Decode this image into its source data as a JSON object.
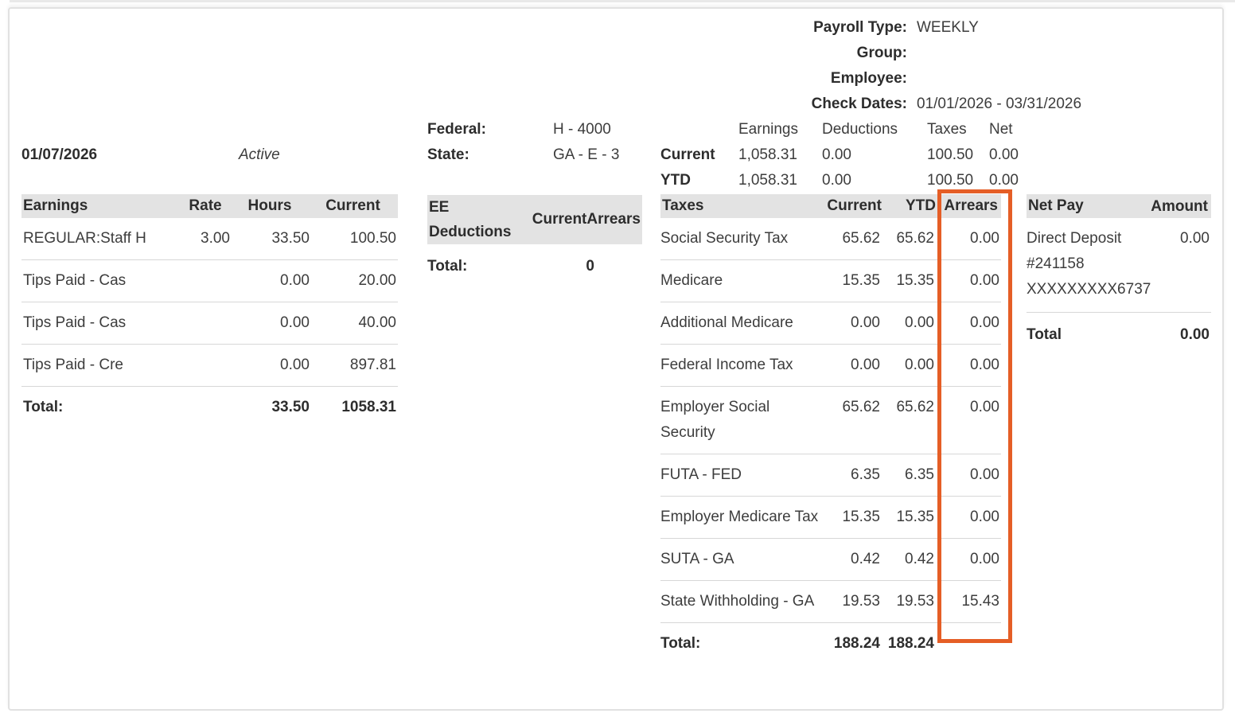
{
  "header": {
    "fields": [
      {
        "label": "Payroll Type:",
        "value": "WEEKLY"
      },
      {
        "label": "Group:",
        "value": ""
      },
      {
        "label": "Employee:",
        "value": ""
      },
      {
        "label": "Check Dates:",
        "value": "01/01/2026 - 03/31/2026"
      }
    ],
    "summary": {
      "columns": [
        "Earnings",
        "Deductions",
        "Taxes",
        "Net"
      ],
      "rows": [
        {
          "label": "Current",
          "earnings": "1,058.31",
          "deductions": "0.00",
          "taxes": "100.50",
          "net": "0.00"
        },
        {
          "label": "YTD",
          "earnings": "1,058.31",
          "deductions": "0.00",
          "taxes": "100.50",
          "net": "0.00"
        }
      ]
    }
  },
  "check": {
    "date": "01/07/2026",
    "status": "Active"
  },
  "earnings": {
    "columns": [
      "Earnings",
      "Rate",
      "Hours",
      "Current"
    ],
    "rows": [
      {
        "name": "REGULAR:Staff H",
        "rate": "3.00",
        "hours": "33.50",
        "current": "100.50"
      },
      {
        "name": "Tips Paid - Cas",
        "rate": "",
        "hours": "0.00",
        "current": "20.00"
      },
      {
        "name": "Tips Paid - Cas",
        "rate": "",
        "hours": "0.00",
        "current": "40.00"
      },
      {
        "name": "Tips Paid - Cre",
        "rate": "",
        "hours": "0.00",
        "current": "897.81"
      }
    ],
    "total": {
      "label": "Total:",
      "hours": "33.50",
      "current": "1058.31"
    }
  },
  "tax_setup": {
    "federal_label": "Federal:",
    "federal_value": "H - 4000",
    "state_label": "State:",
    "state_value": "GA - E - 3"
  },
  "ee_deductions": {
    "title": "EE Deductions",
    "columns": [
      "Current",
      "Arrears"
    ],
    "total": {
      "label": "Total:",
      "value": "0"
    }
  },
  "taxes": {
    "columns": [
      "Taxes",
      "Current",
      "YTD",
      "Arrears"
    ],
    "rows": [
      {
        "name": "Social Security Tax",
        "current": "65.62",
        "ytd": "65.62",
        "arrears": "0.00"
      },
      {
        "name": "Medicare",
        "current": "15.35",
        "ytd": "15.35",
        "arrears": "0.00"
      },
      {
        "name": "Additional Medicare",
        "current": "0.00",
        "ytd": "0.00",
        "arrears": "0.00"
      },
      {
        "name": "Federal Income Tax",
        "current": "0.00",
        "ytd": "0.00",
        "arrears": "0.00"
      },
      {
        "name": "Employer Social Security",
        "current": "65.62",
        "ytd": "65.62",
        "arrears": "0.00"
      },
      {
        "name": "FUTA - FED",
        "current": "6.35",
        "ytd": "6.35",
        "arrears": "0.00"
      },
      {
        "name": "Employer Medicare Tax",
        "current": "15.35",
        "ytd": "15.35",
        "arrears": "0.00"
      },
      {
        "name": "SUTA - GA",
        "current": "0.42",
        "ytd": "0.42",
        "arrears": "0.00"
      },
      {
        "name": "State Withholding - GA",
        "current": "19.53",
        "ytd": "19.53",
        "arrears": "15.43"
      }
    ],
    "total": {
      "label": "Total:",
      "current": "188.24",
      "ytd": "188.24"
    },
    "highlight_color": "#e55e26"
  },
  "net_pay": {
    "columns": [
      "Net Pay",
      "Amount"
    ],
    "rows": [
      {
        "name_lines": [
          "Direct Deposit",
          "#241158",
          "XXXXXXXXX6737"
        ],
        "amount": "0.00"
      }
    ],
    "total": {
      "label": "Total",
      "value": "0.00"
    }
  }
}
